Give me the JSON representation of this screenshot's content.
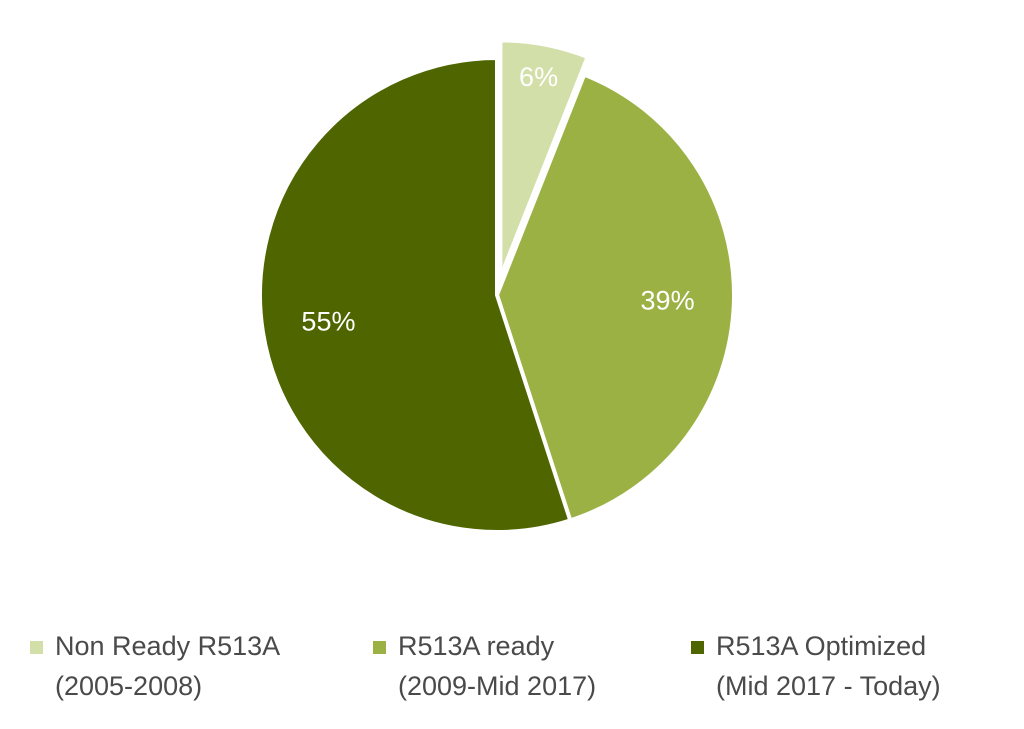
{
  "chart_data": {
    "type": "pie",
    "slices": [
      {
        "label": "Non Ready R513A",
        "sublabel": "(2005-2008)",
        "value": 6,
        "value_label": "6%",
        "color": "#d3dfa9",
        "exploded": true
      },
      {
        "label": "R513A ready",
        "sublabel": "(2009-Mid 2017)",
        "value": 39,
        "value_label": "39%",
        "color": "#9bb144",
        "exploded": false
      },
      {
        "label": "R513A Optimized",
        "sublabel": "(Mid 2017 - Today)",
        "value": 55,
        "value_label": "55%",
        "color": "#4f6600",
        "exploded": false
      }
    ],
    "start_angle": "12 o'clock",
    "direction": "clockwise",
    "legend_position": "bottom"
  }
}
